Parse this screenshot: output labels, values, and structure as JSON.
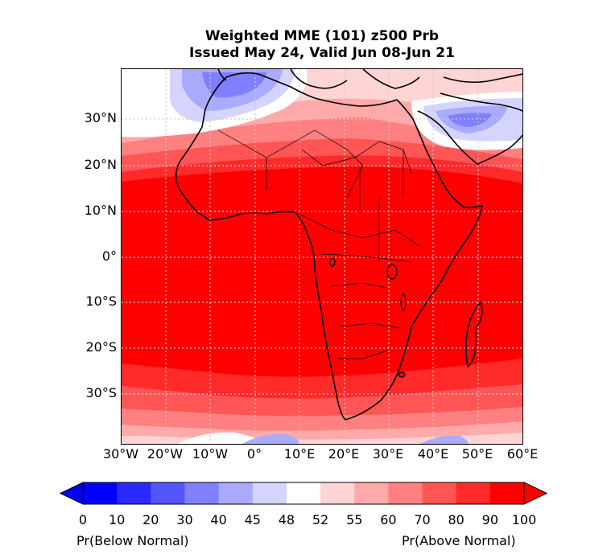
{
  "title_line1": "Weighted MME (101) z500 Prb",
  "title_line2": "Issued May 24, Valid Jun 08-Jun 21",
  "lat_labels": [
    "30°N",
    "20°N",
    "10°N",
    "0°",
    "10°S",
    "20°S",
    "30°S"
  ],
  "lon_labels": [
    "30°W",
    "20°W",
    "10°W",
    "0°",
    "10°E",
    "20°E",
    "30°E",
    "40°E",
    "50°E",
    "60°E"
  ],
  "colorbar": {
    "ticks": [
      "0",
      "10",
      "20",
      "30",
      "40",
      "45",
      "48",
      "52",
      "55",
      "60",
      "70",
      "80",
      "90",
      "100"
    ],
    "colors": [
      "#0000ff",
      "#2a2aff",
      "#5555ff",
      "#8080ff",
      "#aaaaff",
      "#d4d4ff",
      "#ffffff",
      "#ffd4d4",
      "#ffaaaa",
      "#ff8080",
      "#ff5555",
      "#ff2a2a",
      "#ff0000"
    ],
    "left_label": "Pr(Below Normal)",
    "right_label": "Pr(Above Normal)"
  },
  "colors": {
    "gridline": "#cccccc",
    "coastline": "#000000"
  }
}
